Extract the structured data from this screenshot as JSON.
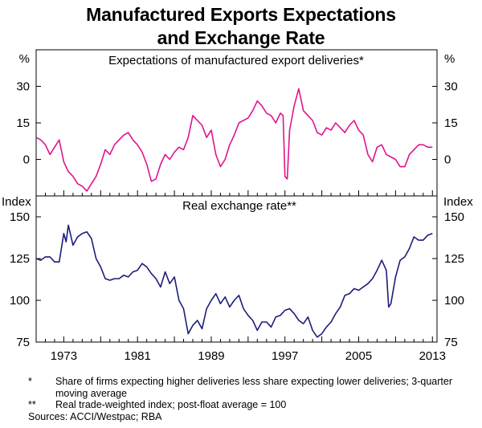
{
  "title_line1": "Manufactured Exports Expectations",
  "title_line2": "and Exchange Rate",
  "colors": {
    "expectations": "#e0148c",
    "exchange_rate": "#1c1c7a",
    "axis": "#000000"
  },
  "chart_data": [
    {
      "type": "line",
      "title": "Expectations of manufactured export deliveries*",
      "unit_left": "%",
      "unit_right": "%",
      "ylim": [
        -15,
        45
      ],
      "yticks": [
        0,
        15,
        30
      ],
      "xlim": [
        1970.0,
        2013.5
      ],
      "series": [
        {
          "name": "Expectations of manufactured export deliveries",
          "x": [
            1970.0,
            1970.5,
            1971.0,
            1971.5,
            1972.0,
            1972.5,
            1973.0,
            1973.5,
            1974.0,
            1974.5,
            1975.0,
            1975.5,
            1976.0,
            1976.5,
            1977.0,
            1977.5,
            1978.0,
            1978.5,
            1979.0,
            1979.5,
            1980.0,
            1980.5,
            1981.0,
            1981.5,
            1982.0,
            1982.5,
            1983.0,
            1983.5,
            1984.0,
            1984.5,
            1985.0,
            1985.5,
            1986.0,
            1986.5,
            1987.0,
            1987.5,
            1988.0,
            1988.5,
            1989.0,
            1989.5,
            1990.0,
            1990.5,
            1991.0,
            1991.5,
            1992.0,
            1992.5,
            1993.0,
            1993.5,
            1994.0,
            1994.5,
            1995.0,
            1995.5,
            1996.0,
            1996.5,
            1996.8,
            1997.0,
            1997.25,
            1997.5,
            1998.0,
            1998.5,
            1999.0,
            1999.5,
            2000.0,
            2000.5,
            2001.0,
            2001.5,
            2002.0,
            2002.5,
            2003.0,
            2003.5,
            2004.0,
            2004.5,
            2005.0,
            2005.5,
            2006.0,
            2006.5,
            2007.0,
            2007.5,
            2008.0,
            2008.5,
            2009.0,
            2009.5,
            2010.0,
            2010.5,
            2011.0,
            2011.5,
            2012.0,
            2012.5,
            2013.0
          ],
          "y": [
            9,
            8,
            6,
            2,
            5,
            8,
            -1,
            -5,
            -7,
            -10,
            -11,
            -13,
            -10,
            -7,
            -2,
            4,
            2,
            6,
            8,
            10,
            11,
            8,
            6,
            3,
            -2,
            -9,
            -8,
            -2,
            2,
            0,
            3,
            5,
            4,
            9,
            18,
            16,
            14,
            9,
            12,
            2,
            -3,
            0,
            6,
            10,
            15,
            16,
            17,
            20,
            24,
            22,
            19,
            18,
            15,
            19,
            18,
            -7,
            -8,
            12,
            22,
            29,
            20,
            18,
            16,
            11,
            10,
            13,
            12,
            15,
            13,
            11,
            14,
            16,
            12,
            10,
            2,
            -1,
            5,
            6,
            2,
            1,
            0,
            -3,
            -3,
            2,
            4,
            6,
            6,
            5,
            5
          ]
        }
      ]
    },
    {
      "type": "line",
      "title": "Real exchange rate**",
      "unit_left": "Index",
      "unit_right": "Index",
      "ylim": [
        75,
        162.5
      ],
      "yticks": [
        75,
        100,
        125,
        150
      ],
      "xlim": [
        1970.0,
        2013.5
      ],
      "xticks": [
        1973,
        1981,
        1989,
        1997,
        2005,
        2013
      ],
      "series": [
        {
          "name": "Real trade-weighted index",
          "x": [
            1970.0,
            1970.5,
            1971.0,
            1971.5,
            1972.0,
            1972.5,
            1973.0,
            1973.25,
            1973.5,
            1974.0,
            1974.5,
            1975.0,
            1975.5,
            1976.0,
            1976.5,
            1977.0,
            1977.5,
            1978.0,
            1978.5,
            1979.0,
            1979.5,
            1980.0,
            1980.5,
            1981.0,
            1981.5,
            1982.0,
            1982.5,
            1983.0,
            1983.5,
            1984.0,
            1984.5,
            1985.0,
            1985.5,
            1986.0,
            1986.5,
            1987.0,
            1987.5,
            1988.0,
            1988.5,
            1989.0,
            1989.5,
            1990.0,
            1990.5,
            1991.0,
            1991.5,
            1992.0,
            1992.5,
            1993.0,
            1993.5,
            1994.0,
            1994.5,
            1995.0,
            1995.5,
            1996.0,
            1996.5,
            1997.0,
            1997.5,
            1998.0,
            1998.5,
            1999.0,
            1999.5,
            2000.0,
            2000.5,
            2001.0,
            2001.5,
            2002.0,
            2002.5,
            2003.0,
            2003.5,
            2004.0,
            2004.5,
            2005.0,
            2005.5,
            2006.0,
            2006.5,
            2007.0,
            2007.5,
            2008.0,
            2008.25,
            2008.5,
            2009.0,
            2009.5,
            2010.0,
            2010.5,
            2011.0,
            2011.5,
            2012.0,
            2012.5,
            2013.0
          ],
          "y": [
            125,
            124,
            126,
            126,
            123,
            123,
            140,
            135,
            145,
            133,
            138,
            140,
            141,
            137,
            125,
            120,
            113,
            112,
            113,
            113,
            115,
            114,
            117,
            118,
            122,
            120,
            116,
            113,
            108,
            117,
            110,
            114,
            100,
            95,
            80,
            85,
            88,
            83,
            95,
            100,
            104,
            98,
            102,
            96,
            100,
            103,
            95,
            91,
            88,
            82,
            87,
            87,
            84,
            90,
            91,
            94,
            95,
            92,
            88,
            86,
            90,
            82,
            78,
            80,
            84,
            87,
            92,
            96,
            103,
            104,
            107,
            106,
            108,
            110,
            113,
            118,
            124,
            118,
            96,
            98,
            114,
            124,
            126,
            131,
            138,
            136,
            136,
            139,
            140
          ]
        }
      ]
    }
  ],
  "x_tick_labels": [
    "1973",
    "1981",
    "1989",
    "1997",
    "2005",
    "2013"
  ],
  "footnotes": [
    {
      "mark": "*",
      "text": "Share of firms expecting higher deliveries less share expecting lower deliveries; 3-quarter moving average"
    },
    {
      "mark": "**",
      "text": "Real trade-weighted index; post-float average = 100"
    }
  ],
  "sources": "Sources: ACCI/Westpac; RBA"
}
